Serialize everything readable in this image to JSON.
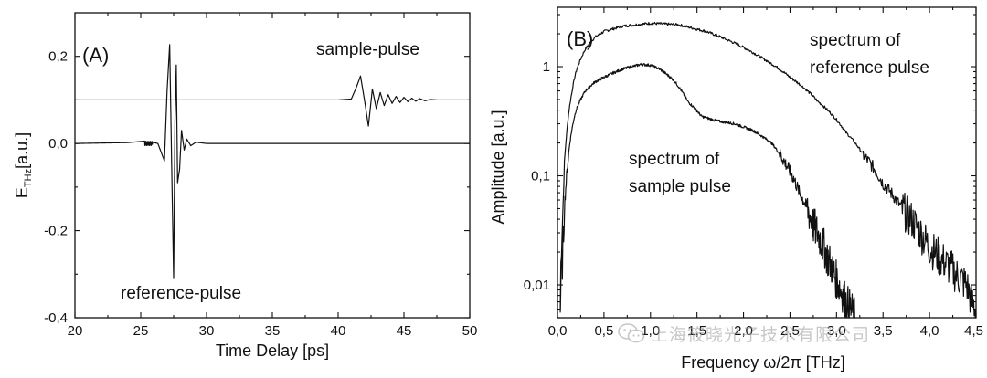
{
  "chart_data": [
    {
      "type": "line",
      "panel_label": "(A)",
      "xlabel": "Time Delay [ps]",
      "ylabel": "E_THz [a.u.]",
      "ylabel_main": "E",
      "ylabel_sub": "THz",
      "ylabel_unit": "[a.u.]",
      "xlim": [
        20,
        50
      ],
      "ylim": [
        -0.4,
        0.3
      ],
      "xticks": [
        20,
        25,
        30,
        35,
        40,
        45,
        50
      ],
      "xtick_labels": [
        "20",
        "25",
        "30",
        "35",
        "40",
        "45",
        "50"
      ],
      "yticks": [
        -0.4,
        -0.2,
        0.0,
        0.2
      ],
      "ytick_labels": [
        "-0,4",
        "-0,2",
        "0,0",
        "0,2"
      ],
      "series": [
        {
          "name": "reference-pulse",
          "baseline": 0.0,
          "x": [
            20,
            24,
            25.5,
            26.3,
            26.8,
            27.0,
            27.2,
            27.35,
            27.5,
            27.6,
            27.7,
            27.8,
            27.95,
            28.1,
            28.3,
            28.5,
            28.8,
            29.2,
            30,
            35,
            40,
            45,
            50
          ],
          "y": [
            0.0,
            0.002,
            0.006,
            0.0,
            -0.04,
            0.12,
            0.227,
            -0.05,
            -0.31,
            0.05,
            0.18,
            -0.09,
            -0.06,
            0.03,
            -0.015,
            0.01,
            -0.005,
            0.003,
            0.0,
            0.0,
            0.0,
            0.0,
            0.0
          ]
        },
        {
          "name": "sample-pulse",
          "baseline": 0.1,
          "x": [
            20,
            40,
            41.0,
            41.4,
            41.7,
            42.0,
            42.3,
            42.6,
            42.9,
            43.2,
            43.5,
            43.8,
            44.1,
            44.4,
            44.7,
            45.0,
            45.3,
            45.6,
            45.9,
            46.2,
            46.6,
            47.0,
            47.5,
            50
          ],
          "y": [
            0.1,
            0.1,
            0.102,
            0.13,
            0.155,
            0.1,
            0.04,
            0.125,
            0.08,
            0.117,
            0.087,
            0.112,
            0.092,
            0.108,
            0.094,
            0.106,
            0.096,
            0.104,
            0.097,
            0.103,
            0.098,
            0.101,
            0.1,
            0.1
          ]
        }
      ],
      "annotations": [
        "sample-pulse",
        "reference-pulse"
      ]
    },
    {
      "type": "line",
      "yscale": "log",
      "panel_label": "(B)",
      "xlabel": "Frequency ω/2π [THz]",
      "ylabel": "Amplitude [a.u.]",
      "xlim": [
        0.0,
        4.5
      ],
      "ylim": [
        0.005,
        3.5
      ],
      "xticks": [
        0.0,
        0.5,
        1.0,
        1.5,
        2.0,
        2.5,
        3.0,
        3.5,
        4.0,
        4.5
      ],
      "xtick_labels": [
        "0,0",
        "0,5",
        "1,0",
        "1,5",
        "2,0",
        "2,5",
        "3,0",
        "3,5",
        "4,0",
        "4,5"
      ],
      "yticks": [
        0.01,
        0.1,
        1
      ],
      "ytick_labels": [
        "0,01",
        "0,1",
        "1"
      ],
      "series": [
        {
          "name": "spectrum of reference pulse",
          "x": [
            0.03,
            0.06,
            0.1,
            0.15,
            0.2,
            0.3,
            0.4,
            0.5,
            0.7,
            1.0,
            1.3,
            1.6,
            1.9,
            2.2,
            2.5,
            2.8,
            3.1,
            3.3,
            3.5,
            3.7,
            3.9,
            4.0,
            4.1,
            4.2,
            4.3,
            4.4,
            4.45,
            4.5
          ],
          "y": [
            0.006,
            0.05,
            0.25,
            0.55,
            0.9,
            1.45,
            1.85,
            2.1,
            2.35,
            2.5,
            2.42,
            2.1,
            1.65,
            1.2,
            0.8,
            0.48,
            0.25,
            0.15,
            0.085,
            0.05,
            0.03,
            0.022,
            0.018,
            0.015,
            0.012,
            0.01,
            0.007,
            0.006
          ]
        },
        {
          "name": "spectrum of sample pulse",
          "x": [
            0.03,
            0.06,
            0.1,
            0.15,
            0.2,
            0.3,
            0.4,
            0.5,
            0.7,
            0.9,
            1.0,
            1.1,
            1.25,
            1.4,
            1.55,
            1.7,
            1.9,
            2.1,
            2.3,
            2.45,
            2.6,
            2.75,
            2.9,
            3.0,
            3.1,
            3.2
          ],
          "y": [
            0.006,
            0.02,
            0.1,
            0.25,
            0.4,
            0.6,
            0.72,
            0.8,
            0.95,
            1.05,
            1.03,
            0.95,
            0.75,
            0.48,
            0.35,
            0.32,
            0.3,
            0.26,
            0.2,
            0.13,
            0.07,
            0.035,
            0.018,
            0.011,
            0.007,
            0.005
          ]
        }
      ],
      "annotations": [
        {
          "lines": [
            "spectrum of",
            "reference pulse"
          ]
        },
        {
          "lines": [
            "spectrum of",
            "sample pulse"
          ]
        }
      ]
    }
  ],
  "watermark": {
    "text": "上海筱晓光子技术有限公司",
    "icon": "wechat-icon"
  }
}
